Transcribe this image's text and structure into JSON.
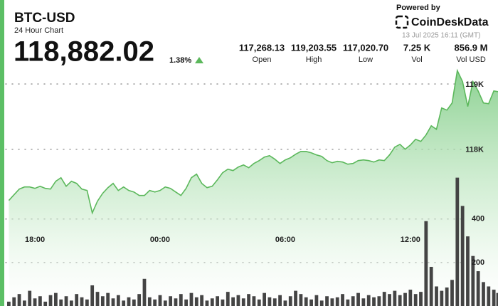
{
  "header": {
    "title": "BTC-USD",
    "subtitle": "24 Hour Chart",
    "price": "118,882.02",
    "change": "1.38%",
    "powered_by": "Powered by",
    "brand": "CoinDeskData",
    "timestamp": "13 Jul 2025 16:11 (GMT)"
  },
  "stats": [
    {
      "value": "117,268.13",
      "label": "Open"
    },
    {
      "value": "119,203.55",
      "label": "High"
    },
    {
      "value": "117,020.70",
      "label": "Low"
    },
    {
      "value": "7.25 K",
      "label": "Vol"
    },
    {
      "value": "856.9 M",
      "label": "Vol USD"
    }
  ],
  "chart_data": {
    "type": "area",
    "x": [
      -7.25,
      -7,
      -6.75,
      -6.5,
      -6.25,
      -6,
      -5.75,
      -5.5,
      -5.25,
      -5,
      -4.75,
      -4.5,
      -4.25,
      -4,
      -3.75,
      -3.5,
      -3.25,
      -3,
      -2.75,
      -2.5,
      -2.25,
      -2,
      -1.75,
      -1.5,
      -1.25,
      -1,
      -0.75,
      -0.5,
      -0.25,
      0,
      0.25,
      0.5,
      0.75,
      1,
      1.25,
      1.5,
      1.75,
      2,
      2.25,
      2.5,
      2.75,
      3,
      3.25,
      3.5,
      3.75,
      4,
      4.25,
      4.5,
      4.75,
      5,
      5.25,
      5.5,
      5.75,
      6,
      6.25,
      6.5,
      6.75,
      7,
      7.25,
      7.5,
      7.75,
      8,
      8.25,
      8.5,
      8.75,
      9,
      9.25,
      9.5,
      9.75,
      10,
      10.25,
      10.5,
      10.75,
      11,
      11.25,
      11.5,
      11.75,
      12,
      12.25,
      12.5,
      12.75,
      13,
      13.25,
      13.5,
      13.75,
      14,
      14.25,
      14.5,
      14.75,
      15,
      15.25,
      15.5,
      15.75,
      16,
      16.2
    ],
    "xlim": [
      -7.4,
      16.2
    ],
    "xticks": [
      {
        "value": -6,
        "label": "18:00"
      },
      {
        "value": 0,
        "label": "00:00"
      },
      {
        "value": 6,
        "label": "06:00"
      },
      {
        "value": 12,
        "label": "12:00"
      }
    ],
    "ylim": [
      115600,
      119250
    ],
    "yticks": [
      {
        "value": 118000,
        "label": "118K"
      },
      {
        "value": 119000,
        "label": "119K"
      }
    ],
    "y2lim": [
      0,
      700
    ],
    "y2ticks": [
      200,
      400
    ],
    "grid": true,
    "series": [
      {
        "type": "area",
        "color": "#5cb85c",
        "values": [
          117216,
          117303,
          117390,
          117423,
          117423,
          117401,
          117434,
          117401,
          117390,
          117510,
          117564,
          117434,
          117510,
          117477,
          117390,
          117368,
          117025,
          117205,
          117325,
          117412,
          117477,
          117368,
          117423,
          117368,
          117346,
          117292,
          117292,
          117368,
          117346,
          117368,
          117423,
          117401,
          117346,
          117292,
          117401,
          117564,
          117619,
          117477,
          117412,
          117434,
          117532,
          117641,
          117695,
          117673,
          117728,
          117760,
          117717,
          117782,
          117826,
          117880,
          117902,
          117848,
          117782,
          117837,
          117869,
          117924,
          117967,
          117967,
          117946,
          117913,
          117891,
          117826,
          117793,
          117815,
          117804,
          117771,
          117782,
          117826,
          117837,
          117826,
          117804,
          117837,
          117826,
          117913,
          118033,
          118076,
          118000,
          118065,
          118153,
          118120,
          118218,
          118359,
          118305,
          118632,
          118599,
          118708,
          119204,
          119035,
          118654,
          119035,
          118893,
          118708,
          118697,
          118893,
          118882.02
        ]
      },
      {
        "type": "bar",
        "axis": "y2",
        "color": "#444444",
        "values": [
          20,
          40,
          55,
          25,
          70,
          35,
          45,
          20,
          50,
          60,
          30,
          45,
          25,
          55,
          40,
          30,
          95,
          65,
          45,
          60,
          35,
          50,
          25,
          40,
          30,
          55,
          125,
          40,
          30,
          50,
          25,
          45,
          35,
          55,
          30,
          60,
          40,
          50,
          25,
          35,
          45,
          30,
          65,
          40,
          50,
          35,
          55,
          45,
          30,
          60,
          40,
          35,
          50,
          25,
          45,
          70,
          55,
          40,
          30,
          50,
          25,
          45,
          35,
          40,
          55,
          30,
          45,
          60,
          35,
          50,
          40,
          45,
          65,
          55,
          70,
          50,
          60,
          75,
          55,
          65,
          390,
          180,
          90,
          70,
          85,
          120,
          590,
          460,
          320,
          230,
          160,
          110,
          90,
          75,
          60
        ]
      }
    ]
  }
}
